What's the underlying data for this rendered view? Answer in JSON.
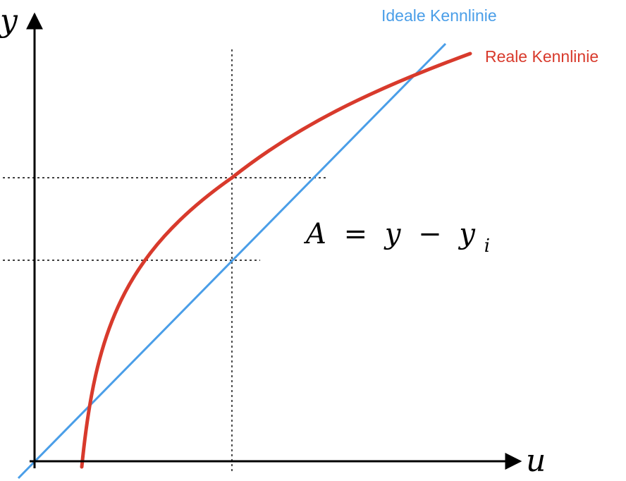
{
  "axes": {
    "x_label": "u",
    "y_label": "y",
    "color": "#000000"
  },
  "curves": {
    "ideal": {
      "label": "Ideale Kennlinie",
      "color": "#4a9ee8"
    },
    "real": {
      "label": "Reale Kennlinie",
      "color": "#d83a2c"
    }
  },
  "formula": {
    "lhs": "A",
    "equals": "=",
    "y": "y",
    "minus": "−",
    "yi_base": "y",
    "yi_sub": "i"
  },
  "guide_lines": {
    "style": "dotted",
    "color": "#000000"
  }
}
